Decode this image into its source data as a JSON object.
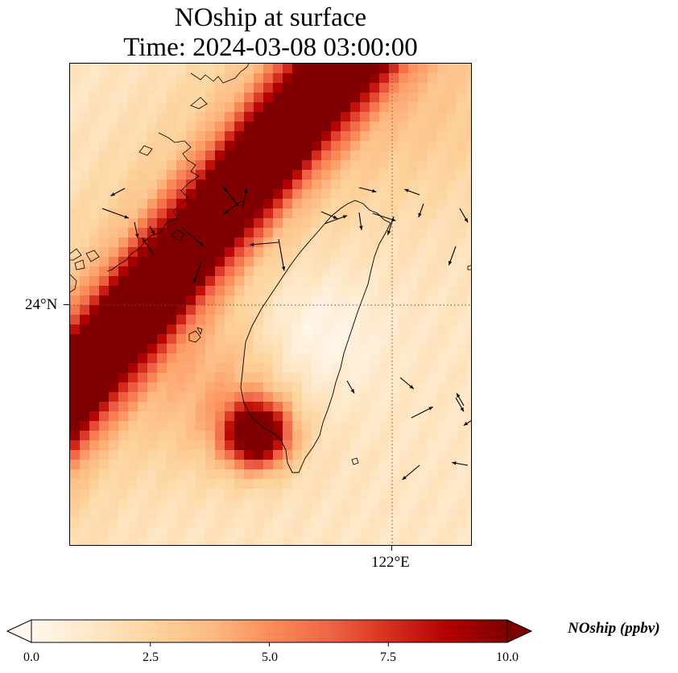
{
  "title": {
    "line1": "NOship at surface",
    "line2": "Time: 2024-03-08 03:00:00"
  },
  "axes": {
    "lat_label": "24°N",
    "lon_label": "122°E"
  },
  "colorbar": {
    "label": "NOship (ppbv)",
    "ticks": [
      "0.0",
      "2.5",
      "5.0",
      "7.5",
      "10.0"
    ],
    "vmin": 0,
    "vmax": 10,
    "extend": "both",
    "colormap": "OrRd",
    "stops": [
      "#fff7ec",
      "#fee8c8",
      "#fdd49e",
      "#fdbb84",
      "#fc8d59",
      "#ef6548",
      "#d7301f",
      "#b30000",
      "#7f0000"
    ]
  },
  "map": {
    "gridlines": "dotted",
    "coastline_color": "#000000",
    "features": [
      "Taiwan",
      "China coast",
      "Penghu islands"
    ],
    "field_description_values": {
      "shipping_lane_max": 10,
      "background_min": 0.5,
      "south_hotspot_max": 10
    }
  }
}
